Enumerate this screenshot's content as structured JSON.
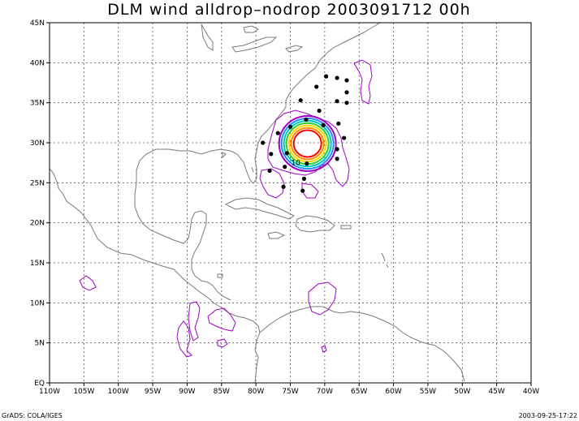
{
  "title": "DLM wind alldrop–nodrop 2003091712 00h",
  "footer_left": "GrADS: COLA/IGES",
  "footer_right": "2003-09-25-17:22",
  "map": {
    "lon_range": [
      -110,
      -40
    ],
    "lat_range": [
      0,
      45
    ],
    "lon_ticks": [
      {
        "lon": -110,
        "label": "110W"
      },
      {
        "lon": -105,
        "label": "105W"
      },
      {
        "lon": -100,
        "label": "100W"
      },
      {
        "lon": -95,
        "label": "95W"
      },
      {
        "lon": -90,
        "label": "90W"
      },
      {
        "lon": -85,
        "label": "85W"
      },
      {
        "lon": -80,
        "label": "80W"
      },
      {
        "lon": -75,
        "label": "75W"
      },
      {
        "lon": -70,
        "label": "70W"
      },
      {
        "lon": -65,
        "label": "65W"
      },
      {
        "lon": -60,
        "label": "60W"
      },
      {
        "lon": -55,
        "label": "55W"
      },
      {
        "lon": -50,
        "label": "50W"
      },
      {
        "lon": -45,
        "label": "45W"
      },
      {
        "lon": -40,
        "label": "40W"
      }
    ],
    "lat_ticks": [
      {
        "lat": 0,
        "label": "EQ"
      },
      {
        "lat": 5,
        "label": "5N"
      },
      {
        "lat": 10,
        "label": "10N"
      },
      {
        "lat": 15,
        "label": "15N"
      },
      {
        "lat": 20,
        "label": "20N"
      },
      {
        "lat": 25,
        "label": "25N"
      },
      {
        "lat": 30,
        "label": "30N"
      },
      {
        "lat": 35,
        "label": "35N"
      },
      {
        "lat": 40,
        "label": "40N"
      },
      {
        "lat": 45,
        "label": "45N"
      }
    ],
    "contour_label": "10",
    "contour_label_pos": {
      "lon": -74.2,
      "lat": 27.5
    },
    "storm_center": {
      "lon": -72.5,
      "lat": 29.9
    },
    "ring_colors": [
      "#ff0000",
      "#ff8c00",
      "#ffd700",
      "#32cd32",
      "#00c8c8",
      "#1e90ff",
      "#a000c8"
    ],
    "dropsondes": [
      {
        "lon": -69.8,
        "lat": 38.3
      },
      {
        "lon": -68.2,
        "lat": 38.1
      },
      {
        "lon": -66.8,
        "lat": 37.8
      },
      {
        "lon": -71.2,
        "lat": 37.0
      },
      {
        "lon": -66.8,
        "lat": 36.3
      },
      {
        "lon": -68.2,
        "lat": 35.2
      },
      {
        "lon": -66.8,
        "lat": 35.0
      },
      {
        "lon": -73.5,
        "lat": 35.3
      },
      {
        "lon": -70.8,
        "lat": 34.0
      },
      {
        "lon": -72.7,
        "lat": 32.9
      },
      {
        "lon": -75.0,
        "lat": 32.0
      },
      {
        "lon": -70.2,
        "lat": 32.2
      },
      {
        "lon": -68.0,
        "lat": 32.4
      },
      {
        "lon": -76.8,
        "lat": 31.2
      },
      {
        "lon": -67.2,
        "lat": 30.6
      },
      {
        "lon": -79.0,
        "lat": 30.0
      },
      {
        "lon": -68.2,
        "lat": 29.2
      },
      {
        "lon": -77.8,
        "lat": 28.6
      },
      {
        "lon": -75.5,
        "lat": 28.7
      },
      {
        "lon": -68.2,
        "lat": 28.0
      },
      {
        "lon": -75.8,
        "lat": 27.0
      },
      {
        "lon": -72.6,
        "lat": 27.4
      },
      {
        "lon": -78.0,
        "lat": 26.5
      },
      {
        "lon": -73.0,
        "lat": 25.5
      },
      {
        "lon": -76.0,
        "lat": 24.5
      },
      {
        "lon": -73.2,
        "lat": 24.0
      }
    ]
  }
}
